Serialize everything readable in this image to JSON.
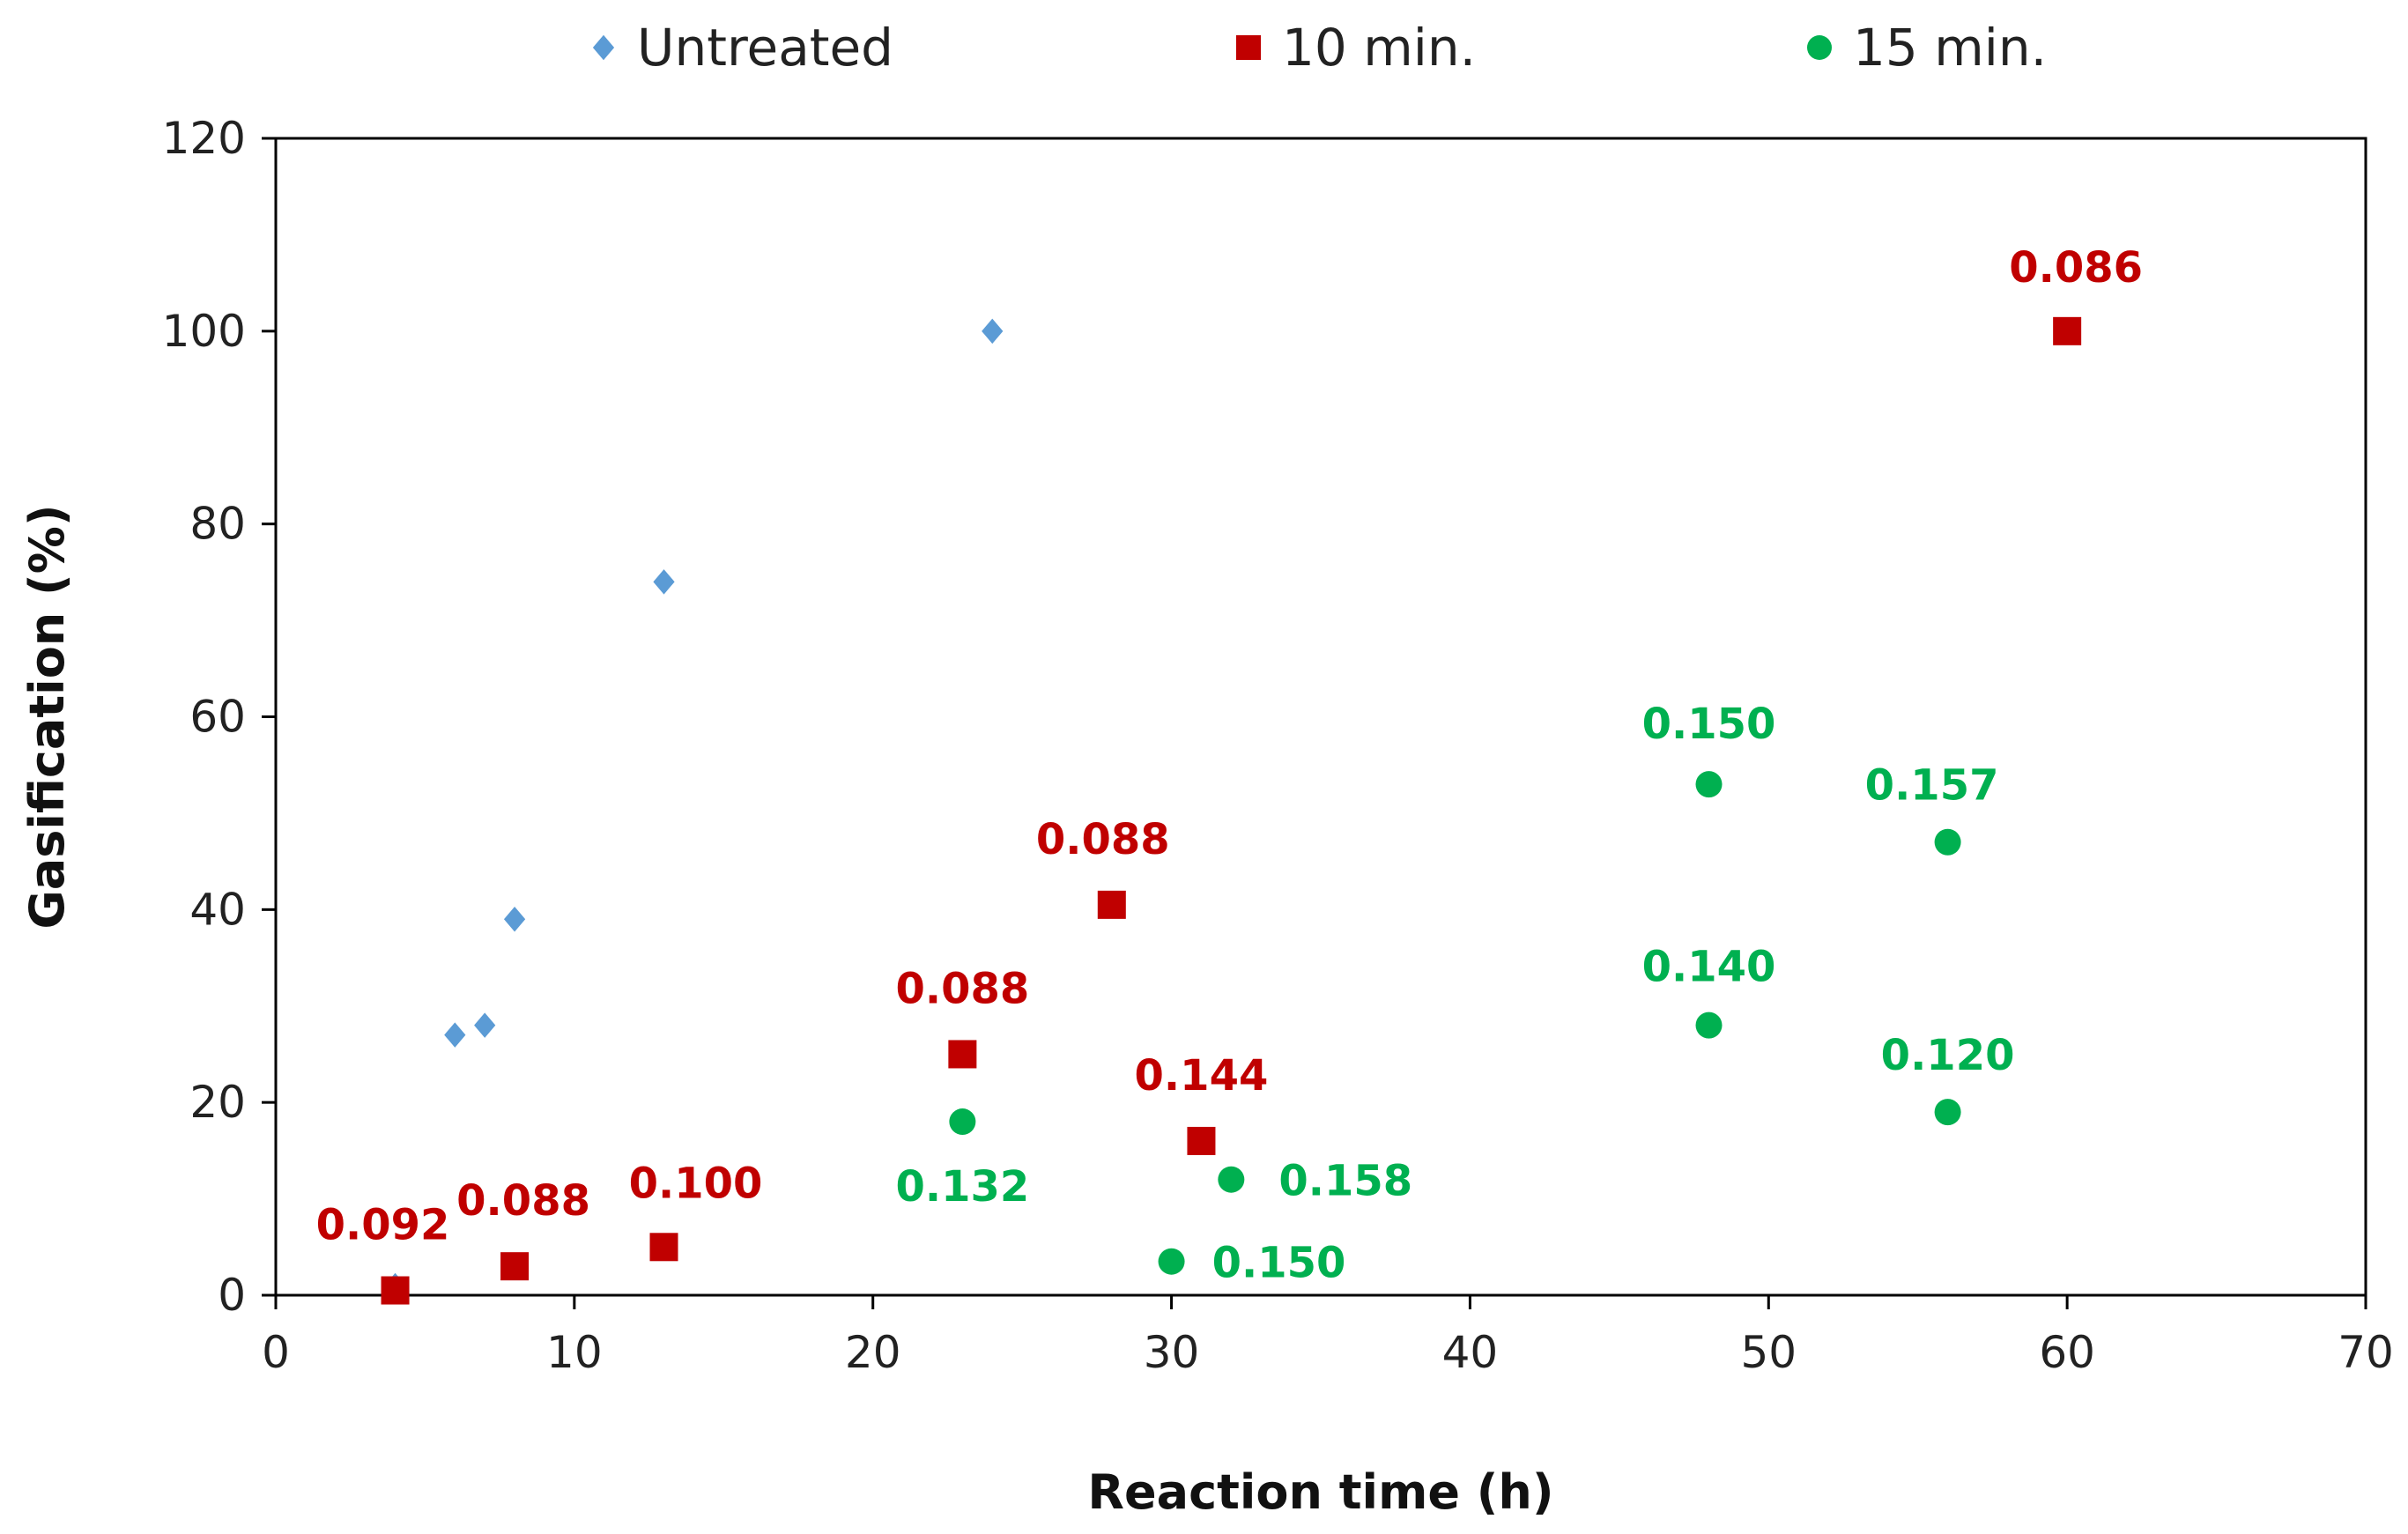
{
  "chart_data": {
    "type": "scatter",
    "title": "",
    "xlabel": "Reaction time (h)",
    "ylabel": "Gasification (%)",
    "xlim": [
      0,
      70
    ],
    "ylim": [
      0,
      120
    ],
    "xticks": [
      "0",
      "10",
      "20",
      "30",
      "40",
      "50",
      "60",
      "70"
    ],
    "yticks": [
      "0",
      "20",
      "40",
      "60",
      "80",
      "100",
      "120"
    ],
    "grid": false,
    "legend_position": "top",
    "series": [
      {
        "name": "Untreated",
        "marker": "diamond",
        "color": "#5b9bd5",
        "points": [
          {
            "x": 4,
            "y": 1
          },
          {
            "x": 6,
            "y": 27
          },
          {
            "x": 7,
            "y": 28
          },
          {
            "x": 8,
            "y": 39
          },
          {
            "x": 13,
            "y": 74
          },
          {
            "x": 24,
            "y": 100
          }
        ]
      },
      {
        "name": "10 min.",
        "marker": "square",
        "color": "#c00000",
        "points": [
          {
            "x": 4,
            "y": 0.5,
            "label": "0.092"
          },
          {
            "x": 8,
            "y": 3,
            "label": "0.088"
          },
          {
            "x": 13,
            "y": 5,
            "label": "0.100"
          },
          {
            "x": 23,
            "y": 25,
            "label": "0.088"
          },
          {
            "x": 28,
            "y": 40.5,
            "label": "0.088"
          },
          {
            "x": 31,
            "y": 16,
            "label": "0.144"
          },
          {
            "x": 60,
            "y": 100,
            "label": "0.086"
          }
        ]
      },
      {
        "name": "15 min.",
        "marker": "circle",
        "color": "#00b050",
        "points": [
          {
            "x": 23,
            "y": 18,
            "label": "0.132"
          },
          {
            "x": 30,
            "y": 3.5,
            "label": "0.150"
          },
          {
            "x": 32,
            "y": 12,
            "label": "0.158"
          },
          {
            "x": 48,
            "y": 53,
            "label": "0.150"
          },
          {
            "x": 48,
            "y": 28,
            "label": "0.140"
          },
          {
            "x": 56,
            "y": 47,
            "label": "0.157"
          },
          {
            "x": 56,
            "y": 19,
            "label": "0.120"
          }
        ]
      }
    ]
  }
}
